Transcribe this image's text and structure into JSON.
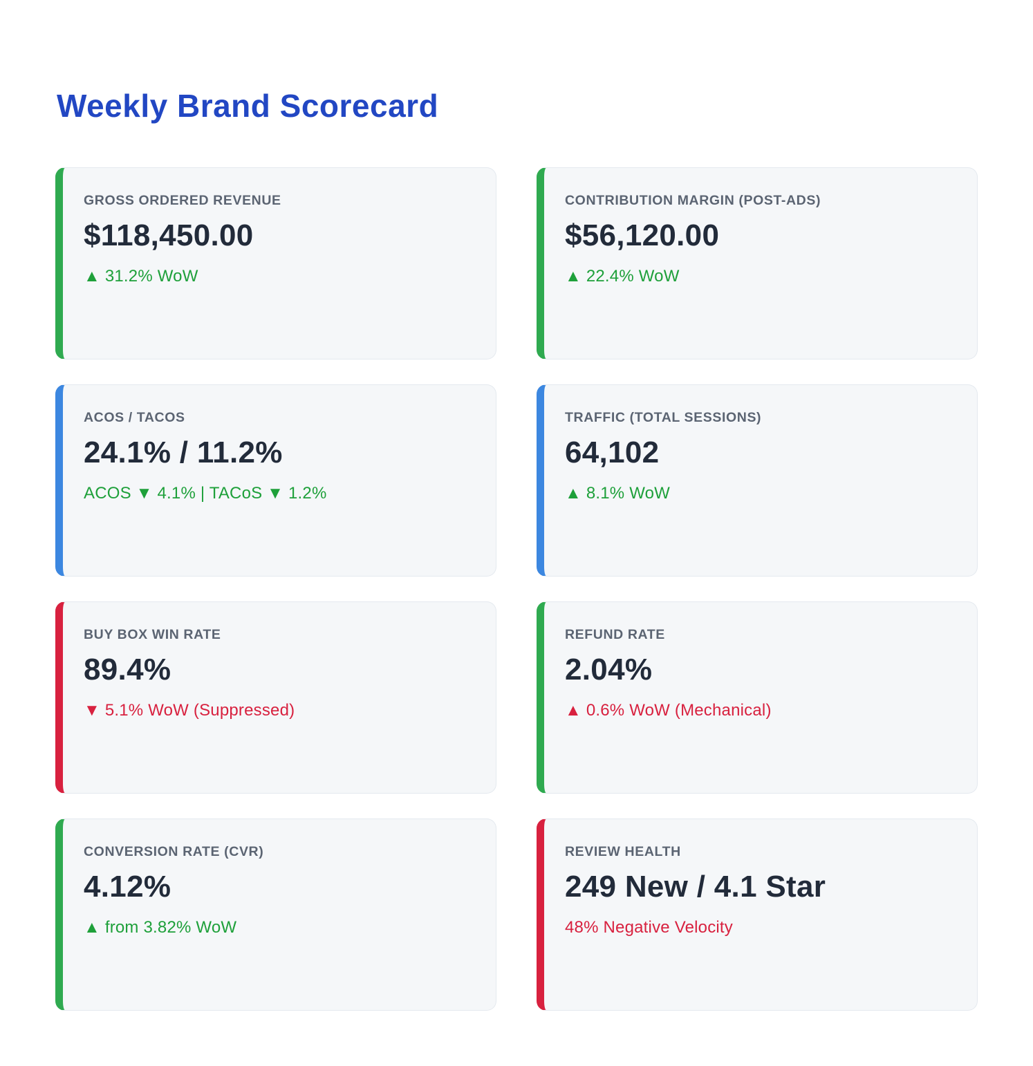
{
  "page": {
    "title": "Weekly Brand Scorecard",
    "title_color": "#2247c3"
  },
  "colors": {
    "positive": "#1ea03a",
    "negative": "#d8213f",
    "accent_green": "#2faa50",
    "accent_blue": "#3c87e0",
    "accent_red": "#d8213f",
    "card_background": "#f5f7f9",
    "value_text": "#222b3a",
    "label_text": "#5b6472"
  },
  "cards": [
    {
      "label": "GROSS ORDERED REVENUE",
      "value": "$118,450.00",
      "delta": "▲ 31.2% WoW",
      "delta_color": "#1ea03a",
      "accent": "#2faa50"
    },
    {
      "label": "CONTRIBUTION MARGIN (POST-ADS)",
      "value": "$56,120.00",
      "delta": "▲ 22.4% WoW",
      "delta_color": "#1ea03a",
      "accent": "#2faa50"
    },
    {
      "label": "ACOS / TACOS",
      "value": "24.1% / 11.2%",
      "delta": "ACOS ▼ 4.1% | TACoS ▼ 1.2%",
      "delta_color": "#1ea03a",
      "accent": "#3c87e0"
    },
    {
      "label": "TRAFFIC (TOTAL SESSIONS)",
      "value": "64,102",
      "delta": "▲ 8.1% WoW",
      "delta_color": "#1ea03a",
      "accent": "#3c87e0"
    },
    {
      "label": "BUY BOX WIN RATE",
      "value": "89.4%",
      "delta": "▼ 5.1% WoW (Suppressed)",
      "delta_color": "#d8213f",
      "accent": "#d8213f"
    },
    {
      "label": "REFUND RATE",
      "value": "2.04%",
      "delta": "▲ 0.6% WoW (Mechanical)",
      "delta_color": "#d8213f",
      "accent": "#2faa50"
    },
    {
      "label": "CONVERSION RATE (CVR)",
      "value": "4.12%",
      "delta": "▲ from 3.82% WoW",
      "delta_color": "#1ea03a",
      "accent": "#2faa50"
    },
    {
      "label": "REVIEW HEALTH",
      "value": "249 New / 4.1 Star",
      "delta": "48% Negative Velocity",
      "delta_color": "#d8213f",
      "accent": "#d8213f"
    }
  ]
}
